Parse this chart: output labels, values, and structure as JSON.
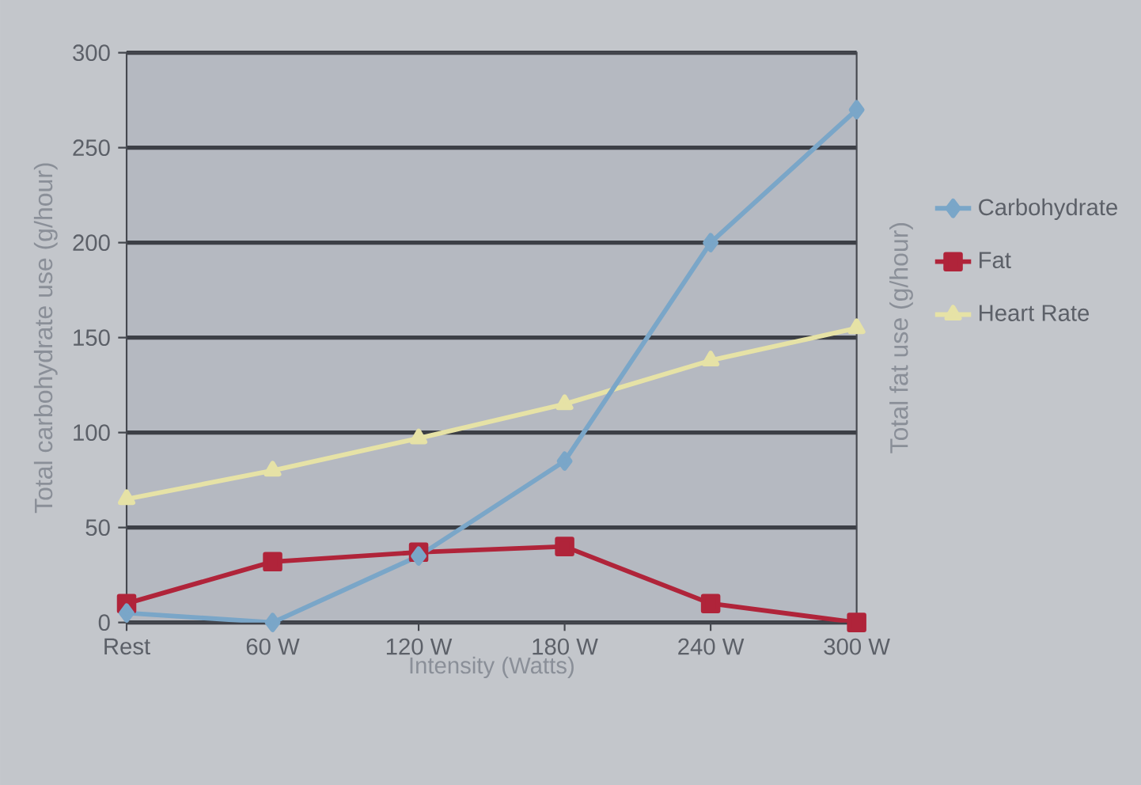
{
  "chart_data": {
    "type": "line",
    "categories": [
      "Rest",
      "60 W",
      "120 W",
      "180 W",
      "240 W",
      "300 W"
    ],
    "xlabel": "Intensity (Watts)",
    "ylabel": "Total carbohydrate use (g/hour)",
    "y2label": "Total fat use (g/hour)",
    "ylim": [
      0,
      300
    ],
    "yticks": [
      0,
      50,
      100,
      150,
      200,
      250,
      300
    ],
    "grid": "y",
    "legend": "right",
    "series": [
      {
        "name": "Carbohydrate",
        "color": "#7aa6c8",
        "marker": "diamond",
        "values": [
          5,
          0,
          35,
          85,
          200,
          270
        ]
      },
      {
        "name": "Fat",
        "color": "#b0243a",
        "marker": "square",
        "values": [
          10,
          32,
          37,
          40,
          10,
          0
        ]
      },
      {
        "name": "Heart Rate",
        "color": "#e6e2a6",
        "marker": "triangle",
        "values": [
          65,
          80,
          97,
          115,
          138,
          155
        ]
      }
    ]
  }
}
